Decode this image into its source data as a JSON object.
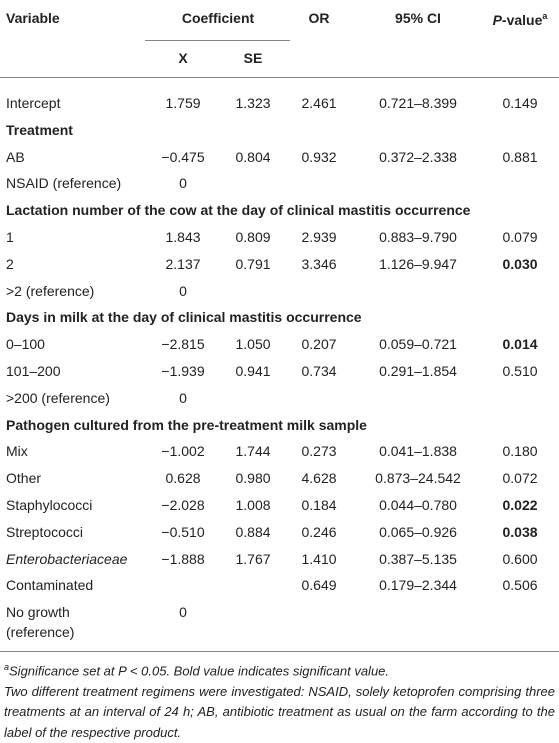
{
  "header": {
    "variable": "Variable",
    "coefficient": "Coefficient",
    "x": "X",
    "se": "SE",
    "or": "OR",
    "ci": "95% CI",
    "p_value": {
      "italic": "P",
      "text": "-value",
      "sup": "a"
    }
  },
  "rows": [
    {
      "label": "Intercept",
      "x": "1.759",
      "se": "1.323",
      "or": "2.461",
      "ci": "0.721–8.399",
      "p": "0.149"
    },
    {
      "group": "Treatment"
    },
    {
      "label": "AB",
      "x": "−0.475",
      "se": "0.804",
      "or": "0.932",
      "ci": "0.372–2.338",
      "p": "0.881"
    },
    {
      "label": "NSAID (reference)",
      "x": "0"
    },
    {
      "group": "Lactation number of the cow at the day of clinical mastitis occurrence"
    },
    {
      "label": "1",
      "x": "1.843",
      "se": "0.809",
      "or": "2.939",
      "ci": "0.883–9.790",
      "p": "0.079"
    },
    {
      "label": "2",
      "x": "2.137",
      "se": "0.791",
      "or": "3.346",
      "ci": "1.126–9.947",
      "p": "0.030",
      "bold_p": true
    },
    {
      "label": ">2 (reference)",
      "x": "0"
    },
    {
      "group": "Days in milk at the day of clinical mastitis occurrence"
    },
    {
      "label": "0–100",
      "x": "−2.815",
      "se": "1.050",
      "or": "0.207",
      "ci": "0.059–0.721",
      "p": "0.014",
      "bold_p": true
    },
    {
      "label": "101–200",
      "x": "−1.939",
      "se": "0.941",
      "or": "0.734",
      "ci": "0.291–1.854",
      "p": "0.510"
    },
    {
      "label": ">200 (reference)",
      "x": "0"
    },
    {
      "group": "Pathogen cultured from the pre-treatment milk sample"
    },
    {
      "label": "Mix",
      "x": "−1.002",
      "se": "1.744",
      "or": "0.273",
      "ci": "0.041–1.838",
      "p": "0.180"
    },
    {
      "label": "Other",
      "x": "0.628",
      "se": "0.980",
      "or": "4.628",
      "ci": "0.873–24.542",
      "p": "0.072"
    },
    {
      "label": "Staphylococci",
      "x": "−2.028",
      "se": "1.008",
      "or": "0.184",
      "ci": "0.044–0.780",
      "p": "0.022",
      "bold_p": true
    },
    {
      "label": "Streptococci",
      "x": "−0.510",
      "se": "0.884",
      "or": "0.246",
      "ci": "0.065–0.926",
      "p": "0.038",
      "bold_p": true
    },
    {
      "label": "Enterobacteriaceae",
      "italic": true,
      "x": "−1.888",
      "se": "1.767",
      "or": "1.410",
      "ci": "0.387–5.135",
      "p": "0.600"
    },
    {
      "label": "Contaminated",
      "or": "0.649",
      "ci": "0.179–2.344",
      "p": "0.506"
    },
    {
      "label": "No growth (reference)",
      "x": "0"
    }
  ],
  "footnotes": [
    {
      "sup": "a",
      "text": "Significance set at P < 0.05. Bold value indicates significant value."
    },
    {
      "text": "Two different treatment regimens were investigated: NSAID, solely ketoprofen comprising three treatments at an interval of 24 h; AB, antibiotic treatment as usual on the farm according to the label of the respective product."
    }
  ]
}
